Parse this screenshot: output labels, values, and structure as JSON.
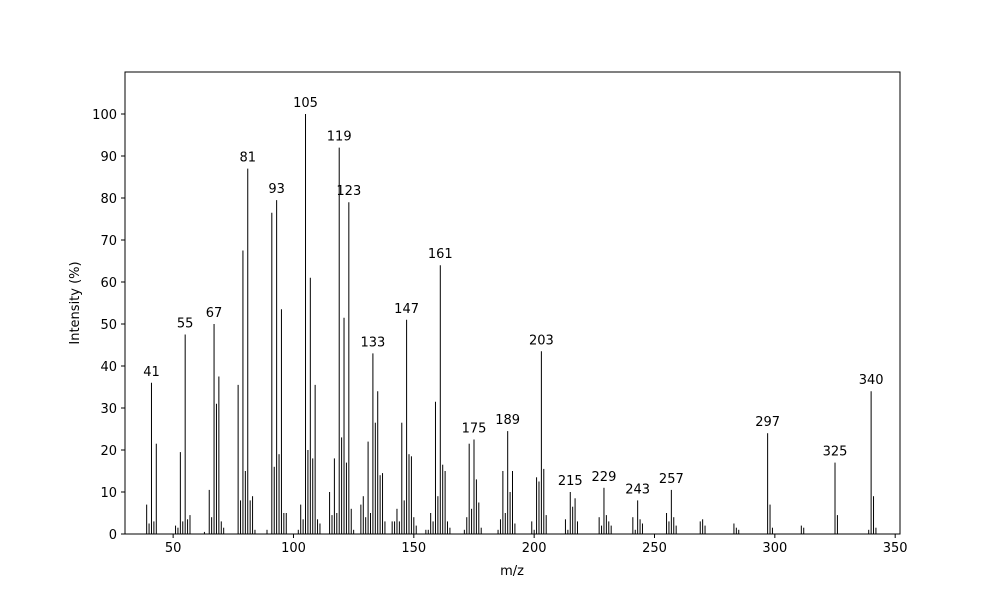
{
  "chart_data": {
    "type": "stick",
    "x_label": "m/z",
    "y_label": "Intensity (%)",
    "x": [
      39,
      40,
      41,
      42,
      43,
      51,
      52,
      53,
      54,
      55,
      56,
      57,
      63,
      65,
      66,
      67,
      68,
      69,
      70,
      71,
      77,
      78,
      79,
      80,
      81,
      82,
      83,
      84,
      89,
      91,
      92,
      93,
      94,
      95,
      96,
      97,
      102,
      103,
      104,
      105,
      106,
      107,
      108,
      109,
      110,
      111,
      115,
      116,
      117,
      118,
      119,
      120,
      121,
      122,
      123,
      124,
      125,
      128,
      129,
      130,
      131,
      132,
      133,
      134,
      135,
      136,
      137,
      138,
      141,
      142,
      143,
      144,
      145,
      146,
      147,
      148,
      149,
      150,
      151,
      155,
      156,
      157,
      158,
      159,
      160,
      161,
      162,
      163,
      164,
      165,
      171,
      172,
      173,
      174,
      175,
      176,
      177,
      178,
      185,
      186,
      187,
      188,
      189,
      190,
      191,
      192,
      199,
      200,
      201,
      202,
      203,
      204,
      205,
      213,
      214,
      215,
      216,
      217,
      218,
      227,
      228,
      229,
      230,
      231,
      232,
      241,
      242,
      243,
      244,
      245,
      255,
      256,
      257,
      258,
      259,
      269,
      270,
      271,
      283,
      284,
      285,
      297,
      298,
      299,
      311,
      312,
      325,
      326,
      339,
      340,
      341,
      342
    ],
    "values": [
      7,
      2.5,
      36,
      3,
      21.5,
      2,
      1.5,
      19.5,
      3,
      47.5,
      3.5,
      4.5,
      0.5,
      10.5,
      4,
      50,
      31,
      37.5,
      3,
      1.5,
      35.5,
      8,
      67.5,
      15,
      87,
      8,
      9,
      1,
      1,
      76.5,
      16,
      79.5,
      19,
      53.5,
      5,
      5,
      1,
      7,
      3.5,
      100,
      20,
      61,
      18,
      35.5,
      3.5,
      2.5,
      10,
      4.5,
      18,
      5,
      92,
      23,
      51.5,
      17,
      79,
      6,
      1,
      7,
      9,
      4,
      22,
      5,
      43,
      26.5,
      34,
      14,
      14.5,
      3,
      3,
      3,
      6,
      3,
      26.5,
      8,
      51,
      19,
      18.5,
      4,
      2,
      1,
      1,
      5,
      3,
      31.5,
      9,
      64,
      16.5,
      15,
      3,
      1.5,
      1,
      4,
      21.5,
      6,
      22.5,
      13,
      7.5,
      1.5,
      1,
      3.5,
      15,
      5,
      24.5,
      10,
      15,
      2.5,
      3,
      1,
      13.5,
      12.5,
      43.5,
      15.5,
      4.5,
      3.5,
      1,
      10,
      6.5,
      8.5,
      3,
      4,
      2,
      11,
      4.5,
      3,
      2,
      4,
      1,
      8,
      3.5,
      2.5,
      5,
      3,
      10.5,
      4,
      2,
      3,
      3.5,
      2,
      2.5,
      1.5,
      1,
      24,
      7,
      1.5,
      2,
      1.5,
      17,
      4.5,
      1,
      34,
      9,
      1.5
    ],
    "color": "#000000",
    "peak_labels": [
      41,
      55,
      67,
      81,
      93,
      105,
      119,
      123,
      133,
      147,
      161,
      175,
      189,
      203,
      215,
      229,
      243,
      257,
      297,
      325,
      340
    ],
    "xlim": [
      30,
      352
    ],
    "xticks": [
      50,
      100,
      150,
      200,
      250,
      300,
      350
    ],
    "ylim": [
      0,
      110
    ],
    "yticks": [
      0,
      10,
      20,
      30,
      40,
      50,
      60,
      70,
      80,
      90,
      100
    ]
  }
}
